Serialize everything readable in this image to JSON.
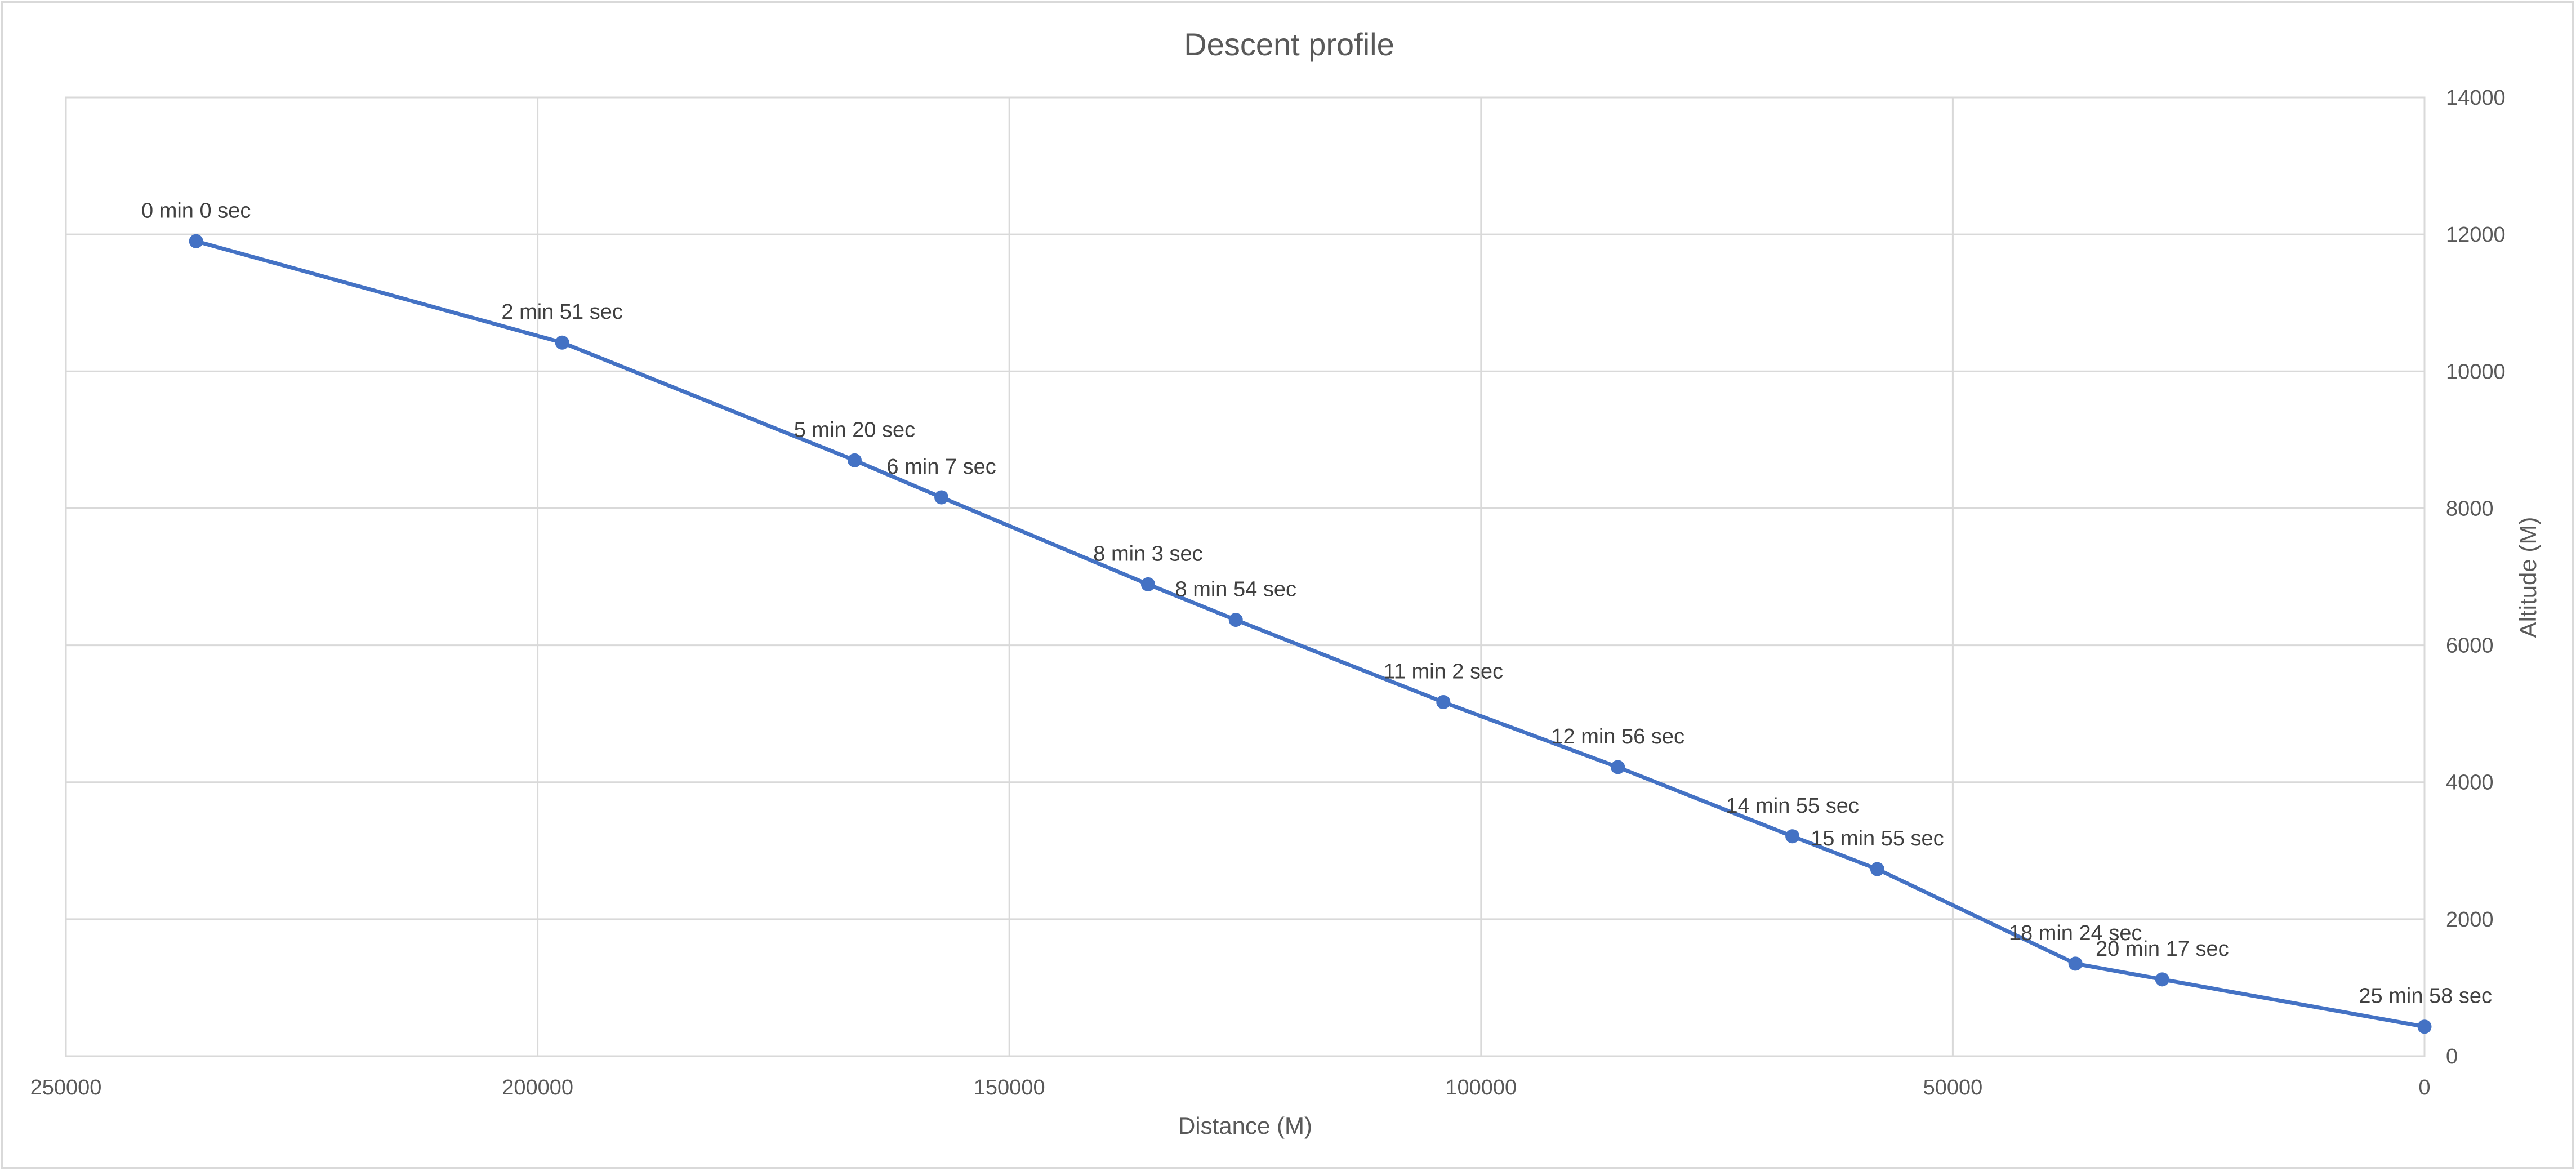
{
  "chart_data": {
    "type": "line",
    "title": "Descent profile",
    "xlabel": "Distance (M)",
    "ylabel": "Altitude (M)",
    "x_axis_reversed": true,
    "y_axis_position": "right",
    "xlim": [
      0,
      250000
    ],
    "ylim": [
      0,
      14000
    ],
    "x_ticks": [
      250000,
      200000,
      150000,
      100000,
      50000,
      0
    ],
    "y_ticks": [
      0,
      2000,
      4000,
      6000,
      8000,
      10000,
      12000,
      14000
    ],
    "grid": true,
    "line_color": "#4472c4",
    "series": [
      {
        "points": [
          {
            "x": 236200,
            "y": 11900,
            "label": "0 min 0 sec"
          },
          {
            "x": 197400,
            "y": 10420,
            "label": "2 min 51 sec"
          },
          {
            "x": 166400,
            "y": 8700,
            "label": "5 min 20 sec"
          },
          {
            "x": 157200,
            "y": 8160,
            "label": "6 min 7 sec"
          },
          {
            "x": 135300,
            "y": 6890,
            "label": "8 min 3 sec"
          },
          {
            "x": 126000,
            "y": 6370,
            "label": "8 min 54 sec"
          },
          {
            "x": 104000,
            "y": 5170,
            "label": "11 min 2 sec"
          },
          {
            "x": 85500,
            "y": 4220,
            "label": "12 min 56 sec"
          },
          {
            "x": 67000,
            "y": 3210,
            "label": "14 min 55 sec"
          },
          {
            "x": 58000,
            "y": 2730,
            "label": "15 min 55 sec"
          },
          {
            "x": 37000,
            "y": 1350,
            "label": "18 min 24 sec"
          },
          {
            "x": 27800,
            "y": 1120,
            "label": "20 min 17 sec"
          },
          {
            "x": 0,
            "y": 430,
            "label": "25 min 58 sec"
          }
        ]
      }
    ]
  }
}
